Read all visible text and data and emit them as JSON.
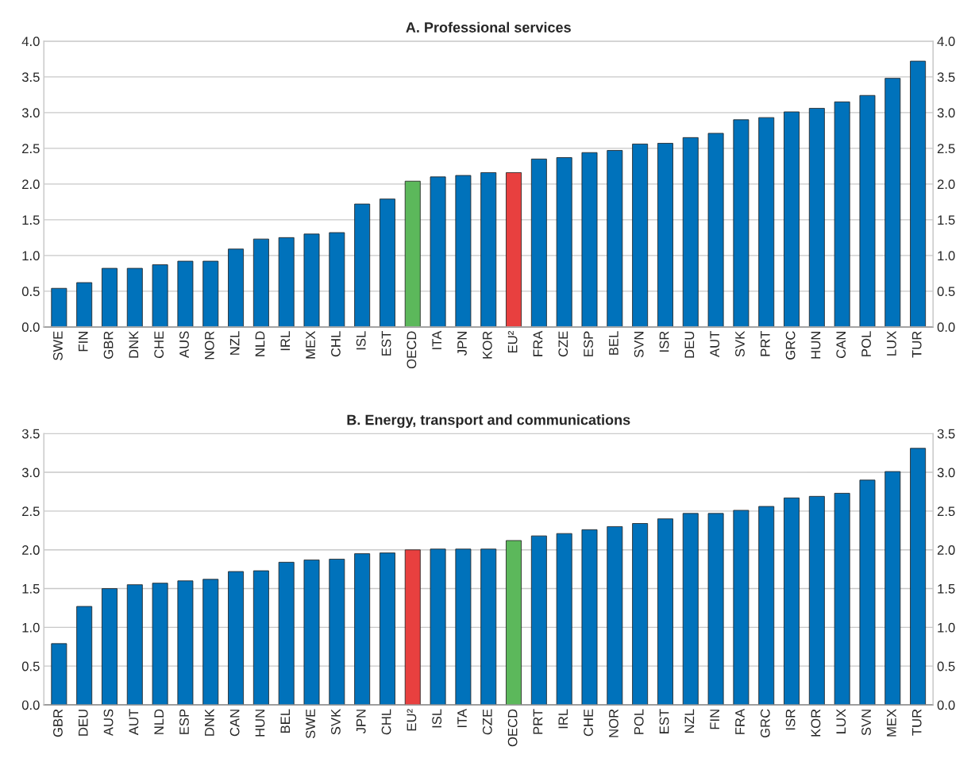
{
  "chart_data": [
    {
      "type": "bar",
      "title": "A. Professional services",
      "categories": [
        "SWE",
        "FIN",
        "GBR",
        "DNK",
        "CHE",
        "AUS",
        "NOR",
        "NZL",
        "NLD",
        "IRL",
        "MEX",
        "CHL",
        "ISL",
        "EST",
        "OECD",
        "ITA",
        "JPN",
        "KOR",
        "EU²",
        "FRA",
        "CZE",
        "ESP",
        "BEL",
        "SVN",
        "ISR",
        "DEU",
        "AUT",
        "SVK",
        "PRT",
        "GRC",
        "HUN",
        "CAN",
        "POL",
        "LUX",
        "TUR"
      ],
      "values": [
        0.54,
        0.62,
        0.82,
        0.82,
        0.87,
        0.92,
        0.92,
        1.09,
        1.23,
        1.25,
        1.3,
        1.32,
        1.72,
        1.79,
        2.04,
        2.1,
        2.12,
        2.16,
        2.16,
        2.35,
        2.37,
        2.44,
        2.47,
        2.56,
        2.57,
        2.65,
        2.71,
        2.9,
        2.93,
        3.01,
        3.06,
        3.15,
        3.24,
        3.48,
        3.72
      ],
      "colors": [
        "#0072bb",
        "#0072bb",
        "#0072bb",
        "#0072bb",
        "#0072bb",
        "#0072bb",
        "#0072bb",
        "#0072bb",
        "#0072bb",
        "#0072bb",
        "#0072bb",
        "#0072bb",
        "#0072bb",
        "#0072bb",
        "#5cb85b",
        "#0072bb",
        "#0072bb",
        "#0072bb",
        "#e8403f",
        "#0072bb",
        "#0072bb",
        "#0072bb",
        "#0072bb",
        "#0072bb",
        "#0072bb",
        "#0072bb",
        "#0072bb",
        "#0072bb",
        "#0072bb",
        "#0072bb",
        "#0072bb",
        "#0072bb",
        "#0072bb",
        "#0072bb",
        "#0072bb"
      ],
      "ylim": [
        0,
        4.0
      ],
      "yticks": [
        {
          "value": 0,
          "label": "0.0"
        },
        {
          "value": 0.5,
          "label": "0.5"
        },
        {
          "value": 1.0,
          "label": "1.0"
        },
        {
          "value": 1.5,
          "label": "1.5"
        },
        {
          "value": 2.0,
          "label": "2.0"
        },
        {
          "value": 2.5,
          "label": "2.5"
        },
        {
          "value": 3.0,
          "label": "3.0"
        },
        {
          "value": 3.5,
          "label": "3.5"
        },
        {
          "value": 4.0,
          "label": "4.0"
        }
      ],
      "y2lim": [
        0,
        4.0
      ],
      "y2ticks": [
        {
          "value": 0,
          "label": "0.0"
        },
        {
          "value": 0.5,
          "label": "0.5"
        },
        {
          "value": 1.0,
          "label": "1.0"
        },
        {
          "value": 1.5,
          "label": "1.5"
        },
        {
          "value": 2.0,
          "label": "2.0"
        },
        {
          "value": 2.5,
          "label": "2.5"
        },
        {
          "value": 3.0,
          "label": "3.0"
        },
        {
          "value": 3.5,
          "label": "3.5"
        },
        {
          "value": 4.0,
          "label": "4.0"
        }
      ],
      "grid": "y",
      "legend": false
    },
    {
      "type": "bar",
      "title": "B. Energy, transport and communications",
      "categories": [
        "GBR",
        "DEU",
        "AUS",
        "AUT",
        "NLD",
        "ESP",
        "DNK",
        "CAN",
        "HUN",
        "BEL",
        "SWE",
        "SVK",
        "JPN",
        "CHL",
        "EU²",
        "ISL",
        "ITA",
        "CZE",
        "OECD",
        "PRT",
        "IRL",
        "CHE",
        "NOR",
        "POL",
        "EST",
        "NZL",
        "FIN",
        "FRA",
        "GRC",
        "ISR",
        "KOR",
        "LUX",
        "SVN",
        "MEX",
        "TUR"
      ],
      "values": [
        0.79,
        1.27,
        1.5,
        1.55,
        1.57,
        1.6,
        1.62,
        1.72,
        1.73,
        1.84,
        1.87,
        1.88,
        1.95,
        1.96,
        2.0,
        2.01,
        2.01,
        2.01,
        2.12,
        2.18,
        2.21,
        2.26,
        2.3,
        2.34,
        2.4,
        2.47,
        2.47,
        2.51,
        2.56,
        2.67,
        2.69,
        2.73,
        2.9,
        3.01,
        3.31
      ],
      "colors": [
        "#0072bb",
        "#0072bb",
        "#0072bb",
        "#0072bb",
        "#0072bb",
        "#0072bb",
        "#0072bb",
        "#0072bb",
        "#0072bb",
        "#0072bb",
        "#0072bb",
        "#0072bb",
        "#0072bb",
        "#0072bb",
        "#e8403f",
        "#0072bb",
        "#0072bb",
        "#0072bb",
        "#5cb85b",
        "#0072bb",
        "#0072bb",
        "#0072bb",
        "#0072bb",
        "#0072bb",
        "#0072bb",
        "#0072bb",
        "#0072bb",
        "#0072bb",
        "#0072bb",
        "#0072bb",
        "#0072bb",
        "#0072bb",
        "#0072bb",
        "#0072bb",
        "#0072bb"
      ],
      "ylim": [
        0,
        3.5
      ],
      "yticks": [
        {
          "value": 0,
          "label": "0.0"
        },
        {
          "value": 0.5,
          "label": "0.5"
        },
        {
          "value": 1.0,
          "label": "1.0"
        },
        {
          "value": 1.5,
          "label": "1.5"
        },
        {
          "value": 2.0,
          "label": "2.0"
        },
        {
          "value": 2.5,
          "label": "2.5"
        },
        {
          "value": 3.0,
          "label": "3.0"
        },
        {
          "value": 3.5,
          "label": "3.5"
        }
      ],
      "y2lim": [
        0,
        3.5
      ],
      "y2ticks": [
        {
          "value": 0,
          "label": "0.0"
        },
        {
          "value": 0.5,
          "label": "0.5"
        },
        {
          "value": 1.0,
          "label": "1.0"
        },
        {
          "value": 1.5,
          "label": "1.5"
        },
        {
          "value": 2.0,
          "label": "2.0"
        },
        {
          "value": 2.5,
          "label": "2.5"
        },
        {
          "value": 3.0,
          "label": "3.0"
        },
        {
          "value": 3.5,
          "label": "3.5"
        }
      ],
      "grid": "y",
      "legend": false
    }
  ]
}
